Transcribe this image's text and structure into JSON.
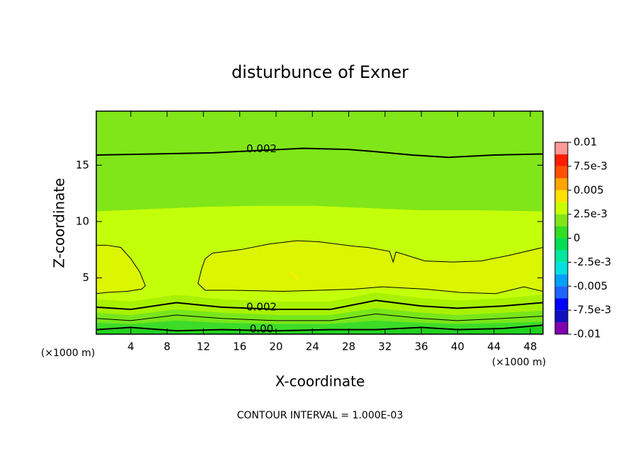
{
  "chart_data": {
    "type": "contour",
    "title": "disturbunce of Exner",
    "xlabel": "X-coordinate",
    "ylabel": "Z-coordinate",
    "x_unit": "(×1000 m)",
    "y_unit": "(×1000 m)",
    "footnote": "CONTOUR INTERVAL = 1.000E-03",
    "xlim": [
      0.2,
      49.4
    ],
    "xticks": [
      4,
      8,
      12,
      16,
      20,
      24,
      28,
      32,
      36,
      40,
      44,
      48
    ],
    "ylim": [
      0,
      19.8
    ],
    "yticks": [
      5,
      10,
      15
    ],
    "plot_color": "#80e619",
    "regions": [
      {
        "color": "#c4ff0a",
        "outline": false,
        "x": [
          0.2,
          6,
          12,
          18,
          24,
          30,
          36,
          42,
          49.4
        ],
        "z": [
          10.9,
          11.1,
          11.3,
          11.4,
          11.4,
          11.2,
          11.0,
          11.0,
          10.9
        ]
      },
      {
        "color": "#dcf500",
        "outline": true,
        "x": [
          0.2,
          1.3,
          2.9,
          4.0,
          5.0,
          5.6,
          5.2,
          3.6,
          1.3,
          0.2
        ],
        "z": [
          7.9,
          7.9,
          7.7,
          6.7,
          5.5,
          4.3,
          4.0,
          3.8,
          3.7,
          3.6
        ]
      },
      {
        "color": "#dcf500",
        "outline": true,
        "x": [
          12.2,
          13.0,
          16.1,
          19.2,
          22.3,
          24.7,
          28.6,
          30.1,
          32.5,
          32.9,
          33.2,
          36.4,
          39.5,
          42.6,
          45.7,
          49.4,
          49.4,
          47.3,
          44.2,
          40.3,
          36.4,
          31.7,
          28.6,
          24.7,
          20.8,
          15.3,
          12.2,
          11.4,
          11.8,
          12.2
        ],
        "z": [
          6.7,
          7.2,
          7.5,
          8.0,
          8.3,
          8.2,
          7.8,
          7.7,
          7.35,
          6.4,
          7.3,
          6.5,
          6.4,
          6.5,
          7.0,
          7.7,
          3.8,
          4.2,
          3.6,
          3.7,
          4.0,
          4.2,
          4.0,
          3.9,
          3.8,
          3.9,
          3.9,
          4.5,
          5.8,
          6.7
        ]
      },
      {
        "color": "#f0f000",
        "outline": false,
        "x": [
          21.2,
          22.7,
          22.2,
          21.2
        ],
        "z": [
          5.9,
          5.0,
          4.8,
          5.9
        ]
      },
      {
        "color": "#a8f200",
        "outline": false,
        "x": [
          0.2,
          4,
          9,
          14,
          20,
          26,
          31,
          36,
          40,
          45,
          49.4
        ],
        "z": [
          3.1,
          2.9,
          3.5,
          3.1,
          2.9,
          2.9,
          3.7,
          3.2,
          3.0,
          3.2,
          3.5
        ]
      },
      {
        "color": "#78e61a",
        "outline": false,
        "x": [
          0.2,
          4,
          9,
          14,
          20,
          26,
          31,
          36,
          40,
          45,
          49.4
        ],
        "z": [
          1.9,
          1.7,
          2.2,
          1.9,
          1.7,
          1.7,
          2.3,
          1.9,
          1.7,
          1.9,
          2.1
        ]
      },
      {
        "color": "#3cdc28",
        "outline": false,
        "x": [
          0.2,
          4,
          9,
          14,
          20,
          26,
          31,
          36,
          40,
          45,
          49.4
        ],
        "z": [
          1.0,
          0.9,
          1.2,
          1.0,
          0.9,
          0.9,
          1.2,
          1.0,
          0.9,
          1.0,
          1.1
        ]
      },
      {
        "color": "#20d21e",
        "outline": false,
        "x": [
          0.2,
          4,
          9,
          14,
          20,
          26,
          31,
          36,
          40,
          45,
          49.4
        ],
        "z": [
          0.3,
          0.5,
          0.2,
          0.3,
          0.2,
          0.3,
          0.3,
          0.5,
          0.3,
          0.5,
          0.7
        ]
      }
    ],
    "contours": [
      {
        "level": 0.002,
        "labeled": true,
        "x": [
          0.2,
          13,
          18,
          23,
          28,
          31,
          35,
          39,
          44,
          49.4
        ],
        "z": [
          15.9,
          16.1,
          16.3,
          16.5,
          16.4,
          16.2,
          15.9,
          15.7,
          15.9,
          16.0
        ]
      },
      {
        "level": 0.002,
        "labeled": true,
        "x": [
          0.2,
          4,
          9,
          14,
          20,
          26,
          31,
          36,
          40,
          45,
          49.4
        ],
        "z": [
          2.4,
          2.2,
          2.8,
          2.4,
          2.2,
          2.2,
          3.0,
          2.5,
          2.3,
          2.5,
          2.8
        ]
      },
      {
        "level": 0.001,
        "labeled": false,
        "x": [
          0.2,
          4,
          9,
          14,
          20,
          26,
          31,
          36,
          40,
          45,
          49.4
        ],
        "z": [
          1.4,
          1.2,
          1.7,
          1.4,
          1.2,
          1.2,
          1.8,
          1.4,
          1.2,
          1.4,
          1.6
        ]
      },
      {
        "level": 0,
        "level_label": "0.00",
        "labeled": true,
        "x": [
          0.2,
          4,
          9,
          14,
          20,
          26,
          31,
          36,
          40,
          45,
          49.4
        ],
        "z": [
          0.4,
          0.6,
          0.3,
          0.4,
          0.3,
          0.4,
          0.4,
          0.6,
          0.4,
          0.5,
          0.8
        ]
      }
    ],
    "colorbar": {
      "levels": [
        -0.01,
        -0.00875,
        -0.0075,
        -0.00625,
        -0.005,
        -0.00375,
        -0.0025,
        -0.00125,
        0,
        0.00125,
        0.0025,
        0.00375,
        0.005,
        0.00625,
        0.0075,
        0.00875,
        0.01
      ],
      "colors": [
        "#8000b0",
        "#1010c0",
        "#0000ff",
        "#1e64ff",
        "#00a0ff",
        "#00e0e0",
        "#00e8a0",
        "#00dd55",
        "#33dd22",
        "#80e619",
        "#c8ff00",
        "#ffe000",
        "#ffa500",
        "#ff5000",
        "#ff1e00",
        "#ff9999"
      ],
      "ticks": [
        -0.01,
        {
          "value": -0.0075,
          "label": "-7.5e-3"
        },
        -0.005,
        {
          "value": -0.0025,
          "label": "-2.5e-3"
        },
        0,
        {
          "value": 0.0025,
          "label": "2.5e-3"
        },
        0.005,
        {
          "value": 0.0075,
          "label": "7.5e-3"
        },
        0.01
      ]
    }
  }
}
